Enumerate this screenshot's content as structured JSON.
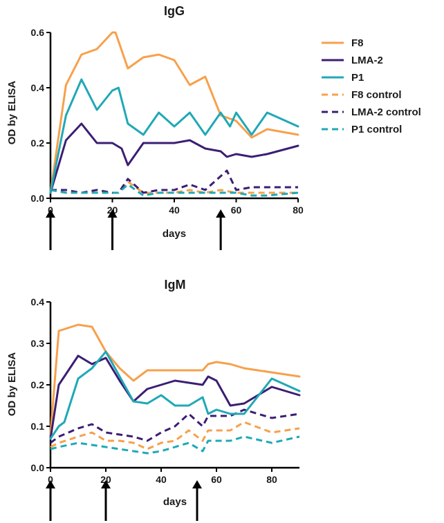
{
  "legend": [
    {
      "name": "F8",
      "color": "#F7A04B",
      "dash": false
    },
    {
      "name": "LMA-2",
      "color": "#3B1E73",
      "dash": false
    },
    {
      "name": "P1",
      "color": "#1FA8B6",
      "dash": false
    },
    {
      "name": "F8 control",
      "color": "#F7A04B",
      "dash": true
    },
    {
      "name": "LMA-2 control",
      "color": "#3B1E73",
      "dash": true
    },
    {
      "name": "P1 control",
      "color": "#1FA8B6",
      "dash": true
    }
  ],
  "chart_data": [
    {
      "type": "line",
      "title": "IgG",
      "xlabel": "days",
      "ylabel": "OD by ELISA",
      "xlim": [
        0,
        80
      ],
      "ylim": [
        0,
        0.6
      ],
      "xticks": [
        0,
        20,
        40,
        60,
        80
      ],
      "yticks": [
        0.0,
        0.2,
        0.4,
        0.6
      ],
      "ytick_labels": [
        "0.0",
        "0.2",
        "0.4",
        "0.6"
      ],
      "arrows_at_days": [
        0,
        20,
        55
      ],
      "series": [
        {
          "name": "F8",
          "x": [
            0,
            5,
            10,
            15,
            20,
            21,
            25,
            30,
            35,
            40,
            45,
            50,
            55,
            60,
            65,
            70,
            80
          ],
          "y": [
            0.02,
            0.41,
            0.52,
            0.54,
            0.6,
            0.6,
            0.47,
            0.51,
            0.52,
            0.5,
            0.41,
            0.44,
            0.3,
            0.28,
            0.22,
            0.25,
            0.23
          ]
        },
        {
          "name": "LMA-2",
          "x": [
            0,
            5,
            10,
            15,
            20,
            23,
            25,
            30,
            35,
            40,
            45,
            50,
            55,
            57,
            60,
            65,
            70,
            80
          ],
          "y": [
            0.02,
            0.21,
            0.27,
            0.2,
            0.2,
            0.18,
            0.12,
            0.2,
            0.2,
            0.2,
            0.21,
            0.18,
            0.17,
            0.15,
            0.16,
            0.15,
            0.16,
            0.19
          ]
        },
        {
          "name": "P1",
          "x": [
            0,
            5,
            10,
            15,
            20,
            22,
            25,
            30,
            35,
            40,
            45,
            50,
            55,
            58,
            60,
            65,
            70,
            80
          ],
          "y": [
            0.02,
            0.3,
            0.43,
            0.32,
            0.39,
            0.4,
            0.27,
            0.23,
            0.31,
            0.26,
            0.31,
            0.23,
            0.31,
            0.26,
            0.31,
            0.23,
            0.31,
            0.26
          ]
        },
        {
          "name": "F8 control",
          "x": [
            0,
            5,
            10,
            15,
            20,
            22,
            25,
            30,
            35,
            40,
            45,
            50,
            55,
            60,
            65,
            70,
            80
          ],
          "y": [
            0.03,
            0.02,
            0.02,
            0.02,
            0.02,
            0.02,
            0.06,
            0.02,
            0.02,
            0.02,
            0.03,
            0.02,
            0.03,
            0.02,
            0.02,
            0.02,
            0.02
          ]
        },
        {
          "name": "LMA-2 control",
          "x": [
            0,
            5,
            10,
            15,
            20,
            22,
            25,
            30,
            35,
            40,
            45,
            50,
            55,
            57,
            60,
            65,
            70,
            80
          ],
          "y": [
            0.03,
            0.03,
            0.02,
            0.03,
            0.02,
            0.02,
            0.07,
            0.02,
            0.03,
            0.03,
            0.05,
            0.03,
            0.08,
            0.1,
            0.03,
            0.04,
            0.04,
            0.04
          ]
        },
        {
          "name": "P1 control",
          "x": [
            0,
            5,
            10,
            15,
            20,
            22,
            25,
            30,
            35,
            40,
            45,
            50,
            55,
            60,
            65,
            70,
            80
          ],
          "y": [
            0.03,
            0.02,
            0.02,
            0.02,
            0.02,
            0.02,
            0.05,
            0.01,
            0.02,
            0.02,
            0.02,
            0.02,
            0.02,
            0.02,
            0.01,
            0.01,
            0.02
          ]
        }
      ]
    },
    {
      "type": "line",
      "title": "IgM",
      "xlabel": "days",
      "ylabel": "OD by  ELISA",
      "xlim": [
        0,
        90
      ],
      "ylim": [
        0,
        0.4
      ],
      "xticks": [
        0,
        20,
        40,
        60,
        80
      ],
      "yticks": [
        0.0,
        0.1,
        0.2,
        0.3,
        0.4
      ],
      "ytick_labels": [
        "0.0",
        "0.1",
        "0.2",
        "0.3",
        "0.4"
      ],
      "arrows_at_days": [
        0,
        20,
        53
      ],
      "series": [
        {
          "name": "F8",
          "x": [
            0,
            3,
            10,
            15,
            20,
            25,
            30,
            35,
            40,
            45,
            50,
            55,
            57,
            60,
            65,
            70,
            80,
            90
          ],
          "y": [
            0.08,
            0.33,
            0.345,
            0.34,
            0.28,
            0.24,
            0.21,
            0.235,
            0.235,
            0.235,
            0.235,
            0.235,
            0.25,
            0.255,
            0.25,
            0.24,
            0.23,
            0.22
          ]
        },
        {
          "name": "LMA-2",
          "x": [
            0,
            3,
            10,
            15,
            20,
            25,
            30,
            35,
            40,
            45,
            50,
            55,
            57,
            60,
            65,
            70,
            80,
            90
          ],
          "y": [
            0.07,
            0.2,
            0.27,
            0.25,
            0.265,
            0.21,
            0.16,
            0.19,
            0.2,
            0.21,
            0.205,
            0.2,
            0.22,
            0.21,
            0.15,
            0.155,
            0.195,
            0.175
          ]
        },
        {
          "name": "P1",
          "x": [
            0,
            3,
            5,
            10,
            15,
            20,
            25,
            30,
            35,
            40,
            45,
            50,
            55,
            57,
            60,
            65,
            70,
            80,
            90
          ],
          "y": [
            0.07,
            0.1,
            0.11,
            0.215,
            0.24,
            0.28,
            0.22,
            0.16,
            0.155,
            0.175,
            0.15,
            0.15,
            0.17,
            0.13,
            0.14,
            0.13,
            0.13,
            0.215,
            0.185
          ]
        },
        {
          "name": "F8 control",
          "x": [
            0,
            3,
            10,
            15,
            20,
            25,
            30,
            35,
            40,
            45,
            50,
            55,
            57,
            60,
            65,
            70,
            80,
            90
          ],
          "y": [
            0.05,
            0.06,
            0.075,
            0.085,
            0.065,
            0.065,
            0.06,
            0.045,
            0.06,
            0.065,
            0.09,
            0.065,
            0.09,
            0.09,
            0.09,
            0.11,
            0.085,
            0.095
          ]
        },
        {
          "name": "LMA-2 control",
          "x": [
            0,
            3,
            10,
            15,
            20,
            25,
            30,
            35,
            40,
            45,
            50,
            55,
            57,
            60,
            65,
            70,
            80,
            90
          ],
          "y": [
            0.06,
            0.075,
            0.095,
            0.105,
            0.085,
            0.08,
            0.075,
            0.065,
            0.085,
            0.1,
            0.13,
            0.1,
            0.125,
            0.125,
            0.125,
            0.14,
            0.12,
            0.13
          ]
        },
        {
          "name": "P1 control",
          "x": [
            0,
            3,
            10,
            15,
            20,
            25,
            30,
            35,
            40,
            45,
            50,
            55,
            57,
            60,
            65,
            70,
            80,
            90
          ],
          "y": [
            0.045,
            0.05,
            0.06,
            0.055,
            0.05,
            0.045,
            0.04,
            0.035,
            0.04,
            0.05,
            0.06,
            0.04,
            0.065,
            0.065,
            0.065,
            0.075,
            0.06,
            0.075
          ]
        }
      ]
    }
  ]
}
